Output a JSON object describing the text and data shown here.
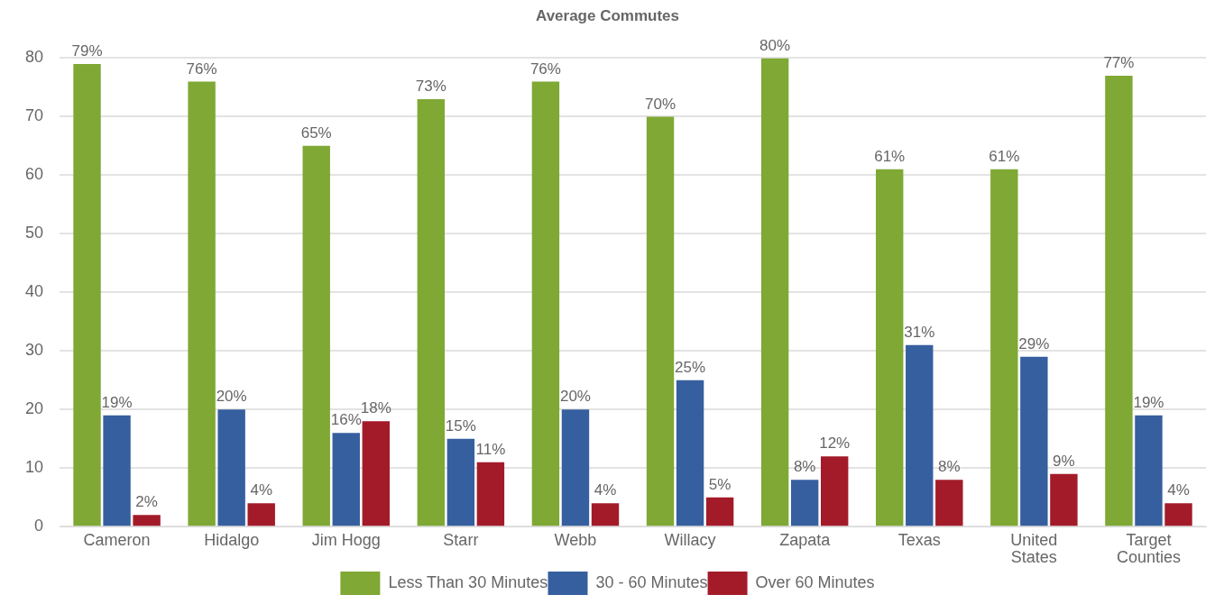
{
  "chart_data": {
    "type": "bar",
    "title": "Average Commutes",
    "categories": [
      "Cameron",
      "Hidalgo",
      "Jim Hogg",
      "Starr",
      "Webb",
      "Willacy",
      "Zapata",
      "Texas",
      "United States",
      "Target Counties"
    ],
    "series": [
      {
        "name": "Less Than 30 Minutes",
        "color": "#7fa834",
        "values": [
          79,
          76,
          65,
          73,
          76,
          70,
          80,
          61,
          61,
          77
        ],
        "value_labels": [
          "79%",
          "76%",
          "65%",
          "73%",
          "76%",
          "70%",
          "80%",
          "61%",
          "61%",
          "77%"
        ]
      },
      {
        "name": "30 - 60 Minutes",
        "color": "#365f9f",
        "values": [
          19,
          20,
          16,
          15,
          20,
          25,
          8,
          31,
          29,
          19
        ],
        "value_labels": [
          "19%",
          "20%",
          "16%",
          "15%",
          "20%",
          "25%",
          "8%",
          "31%",
          "29%",
          "19%"
        ]
      },
      {
        "name": "Over 60 Minutes",
        "color": "#a31b29",
        "values": [
          2,
          4,
          18,
          11,
          4,
          5,
          12,
          8,
          9,
          4
        ],
        "value_labels": [
          "2%",
          "4%",
          "18%",
          "11%",
          "4%",
          "5%",
          "12%",
          "8%",
          "9%",
          "4%"
        ]
      }
    ],
    "ylim": [
      0,
      80
    ],
    "yticks": [
      0,
      10,
      20,
      30,
      40,
      50,
      60,
      70,
      80
    ],
    "grid": "y",
    "legend": "bottom"
  }
}
